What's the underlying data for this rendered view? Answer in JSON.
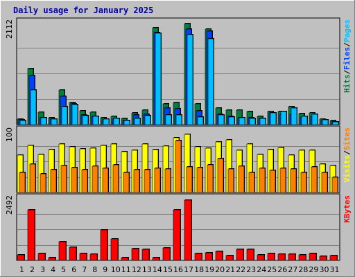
{
  "chart_data": {
    "type": "bar",
    "title": "Daily usage for January 2025",
    "days": [
      "1",
      "2",
      "3",
      "4",
      "5",
      "6",
      "7",
      "8",
      "9",
      "10",
      "11",
      "12",
      "13",
      "14",
      "15",
      "16",
      "17",
      "18",
      "19",
      "20",
      "21",
      "22",
      "23",
      "24",
      "25",
      "26",
      "27",
      "28",
      "29",
      "30",
      "31"
    ],
    "weekend_days": [
      "4",
      "5",
      "11",
      "12",
      "18",
      "19",
      "25",
      "26"
    ],
    "colors": {
      "hits": "#008040",
      "files": "#0040ff",
      "pages": "#00c0ff",
      "visits": "#ffff00",
      "sites": "#ff8000",
      "kbytes": "#ff0000",
      "weekday_label": "#000000",
      "weekend_label": "#00805c"
    },
    "panels": [
      {
        "id": "hits_files_pages",
        "ymax_label": "2112",
        "ymax": 2112,
        "grid_lines": 3,
        "legend": [
          {
            "text": "Hits",
            "color": "#008040"
          },
          {
            "text": "/",
            "color": "#000000"
          },
          {
            "text": "Files",
            "color": "#0040ff"
          },
          {
            "text": "/",
            "color": "#000000"
          },
          {
            "text": "Pages",
            "color": "#00c0ff"
          }
        ],
        "series": [
          {
            "name": "Hits",
            "color": "#008040",
            "values": [
              110,
              1170,
              260,
              150,
              730,
              460,
              290,
              260,
              150,
              180,
              130,
              240,
              310,
              2030,
              440,
              460,
              2110,
              440,
              1990,
              350,
              310,
              310,
              280,
              170,
              280,
              270,
              370,
              230,
              240,
              110,
              80
            ]
          },
          {
            "name": "Files",
            "color": "#0040ff",
            "values": [
              100,
              1030,
              140,
              120,
              590,
              440,
              200,
              180,
              100,
              120,
              90,
              200,
              220,
              1930,
              340,
              330,
              1990,
              290,
              1960,
              220,
              180,
              150,
              140,
              130,
              240,
              220,
              220,
              160,
              170,
              90,
              60
            ]
          },
          {
            "name": "Pages",
            "color": "#00c0ff",
            "values": [
              90,
              720,
              150,
              110,
              380,
              420,
              190,
              170,
              110,
              130,
              90,
              130,
              190,
              1910,
              200,
              200,
              1880,
              160,
              1800,
              200,
              160,
              150,
              130,
              130,
              240,
              270,
              340,
              180,
              210,
              100,
              60
            ]
          }
        ]
      },
      {
        "id": "visits_sites",
        "ymax_label": "100",
        "ymax": 100,
        "grid_lines": 3,
        "legend": [
          {
            "text": "Visits",
            "color": "#ffff00"
          },
          {
            "text": "/",
            "color": "#000000"
          },
          {
            "text": "Sites",
            "color": "#ff8000"
          }
        ],
        "series": [
          {
            "name": "Visits",
            "color": "#ffff00",
            "values": [
              61,
              77,
              63,
              70,
              79,
              75,
              72,
              73,
              77,
              80,
              67,
              69,
              80,
              71,
              76,
              90,
              96,
              75,
              73,
              83,
              86,
              69,
              79,
              63,
              71,
              74,
              61,
              69,
              69,
              47,
              44
            ]
          },
          {
            "name": "Sites",
            "color": "#ff8000",
            "values": [
              33,
              47,
              31,
              37,
              44,
              41,
              37,
              43,
              40,
              45,
              33,
              37,
              38,
              40,
              39,
              85,
              42,
              41,
              46,
              56,
              39,
              43,
              33,
              40,
              36,
              40,
              39,
              33,
              42,
              33,
              25
            ]
          }
        ]
      },
      {
        "id": "kbytes",
        "ymax_label": "2492",
        "ymax": 2492,
        "grid_lines": 3,
        "legend": [
          {
            "text": "KBytes",
            "color": "#ff0000"
          }
        ],
        "series": [
          {
            "name": "KBytes",
            "color": "#ff0000",
            "values": [
              240,
              2080,
              270,
              110,
              760,
              540,
              270,
              250,
              1240,
              890,
              120,
              480,
              460,
              120,
              520,
              2080,
              2460,
              280,
              320,
              380,
              200,
              450,
              440,
              230,
              270,
              260,
              260,
              230,
              270,
              170,
              200
            ]
          }
        ]
      }
    ]
  }
}
